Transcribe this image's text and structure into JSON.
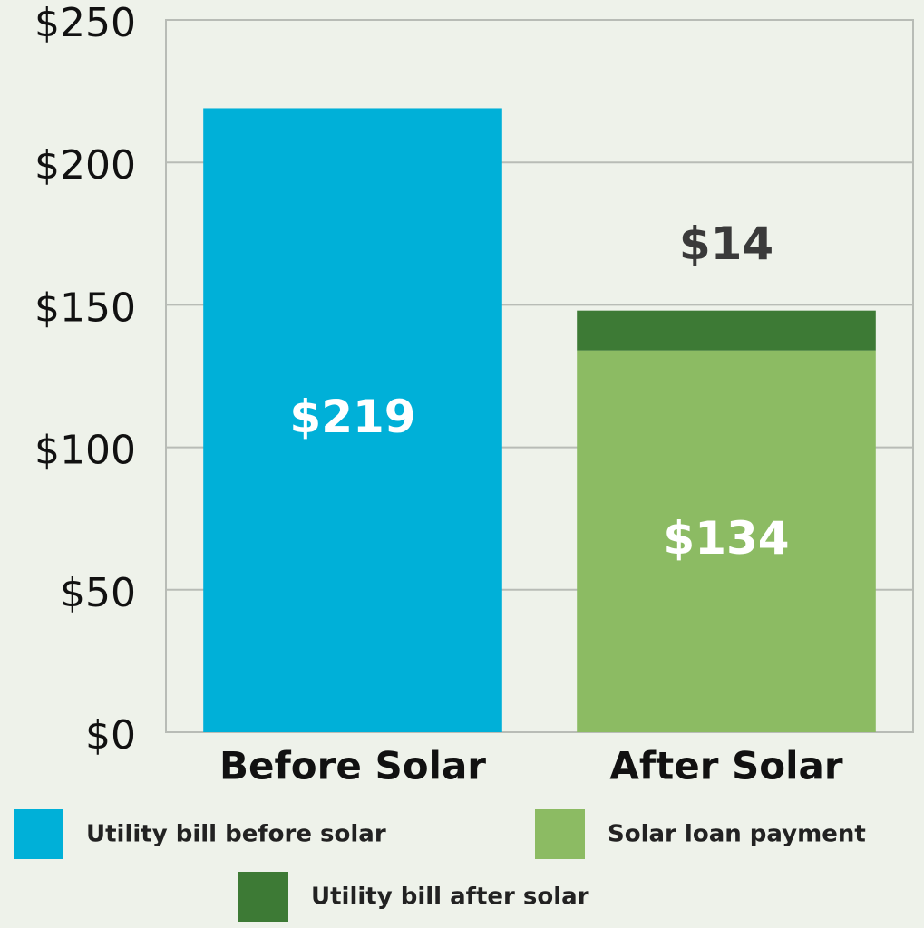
{
  "chart_data": {
    "type": "stacked_bar",
    "categories": [
      "Before Solar",
      "After Solar"
    ],
    "series": [
      {
        "name": "Utility bill before solar",
        "color": "#00b0d8",
        "values": [
          219,
          null
        ],
        "value_labels": [
          "$219",
          null
        ]
      },
      {
        "name": "Solar loan payment",
        "color": "#8cbb63",
        "values": [
          null,
          134
        ],
        "value_labels": [
          null,
          "$134"
        ]
      },
      {
        "name": "Utility bill after solar",
        "color": "#3d7a35",
        "values": [
          null,
          14
        ],
        "value_labels": [
          null,
          "$14"
        ]
      }
    ],
    "ylim": [
      0,
      250
    ],
    "yticks": [
      {
        "value": 0,
        "label": "$0"
      },
      {
        "value": 50,
        "label": "$50"
      },
      {
        "value": 100,
        "label": "$100"
      },
      {
        "value": 150,
        "label": "$150"
      },
      {
        "value": 200,
        "label": "$200"
      },
      {
        "value": 250,
        "label": "$250"
      }
    ],
    "grid": true
  }
}
